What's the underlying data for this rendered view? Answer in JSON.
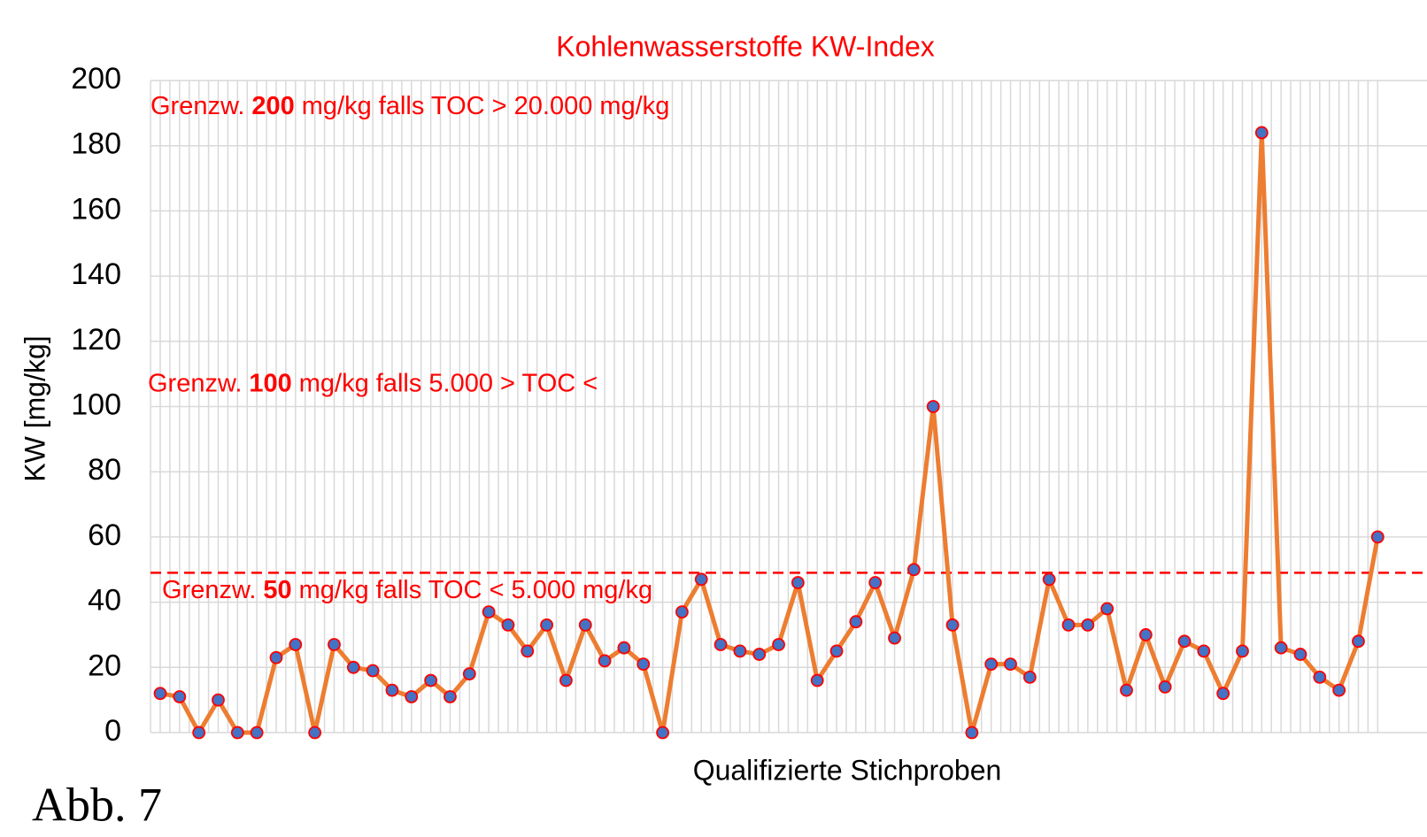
{
  "chart_data": {
    "type": "line",
    "title": "Kohlenwasserstoffe KW-Index",
    "y_label": "KW [mg/kg]",
    "x_label": "Qualifizierte Stichproben",
    "figure_label": "Abb. 7",
    "categories": [
      null,
      null,
      null,
      null,
      null,
      null,
      null,
      null,
      null,
      null,
      null,
      null,
      null,
      null,
      null,
      null,
      null,
      null,
      null,
      null,
      null,
      null,
      null,
      null,
      null,
      null,
      null,
      null,
      null,
      null,
      null,
      null,
      null,
      null,
      null,
      null,
      null,
      null,
      null,
      null,
      null,
      null,
      null,
      null,
      null,
      null,
      null,
      null,
      null,
      null,
      null,
      null,
      null,
      null,
      null,
      null,
      null,
      null,
      null,
      null,
      null,
      null,
      null,
      null
    ],
    "series": [
      {
        "name": "KW",
        "color": "#ed7d31",
        "marker_color": "#4472c4",
        "marker_edge": "#ff0000",
        "values": [
          12,
          11,
          0,
          10,
          0,
          0,
          23,
          27,
          0,
          27,
          20,
          19,
          13,
          11,
          16,
          11,
          18,
          37,
          33,
          25,
          33,
          16,
          33,
          22,
          26,
          21,
          0,
          37,
          47,
          27,
          25,
          24,
          27,
          46,
          16,
          25,
          34,
          46,
          29,
          50,
          100,
          33,
          0,
          21,
          21,
          17,
          47,
          33,
          33,
          38,
          13,
          30,
          14,
          28,
          25,
          12,
          25,
          184,
          26,
          24,
          17,
          13,
          28,
          60
        ]
      }
    ],
    "ylim": [
      0,
      200
    ],
    "yticks": [
      0,
      20,
      40,
      60,
      80,
      100,
      120,
      140,
      160,
      180,
      200
    ],
    "grid": true,
    "reference_line": {
      "value": 49,
      "color": "#ff0000"
    },
    "annotations": [
      {
        "prefix": "Grenzw.",
        "bold": "200",
        "suffix": "mg/kg falls TOC > 20.000 mg/kg",
        "y": 200
      },
      {
        "prefix": "Grenzw.",
        "bold": "100",
        "suffix": "mg/kg falls 5.000 > TOC <",
        "y": 100
      },
      {
        "prefix": "Grenzw.",
        "bold": "50",
        "suffix": "mg/kg falls TOC < 5.000 mg/kg",
        "y": 50
      }
    ]
  }
}
